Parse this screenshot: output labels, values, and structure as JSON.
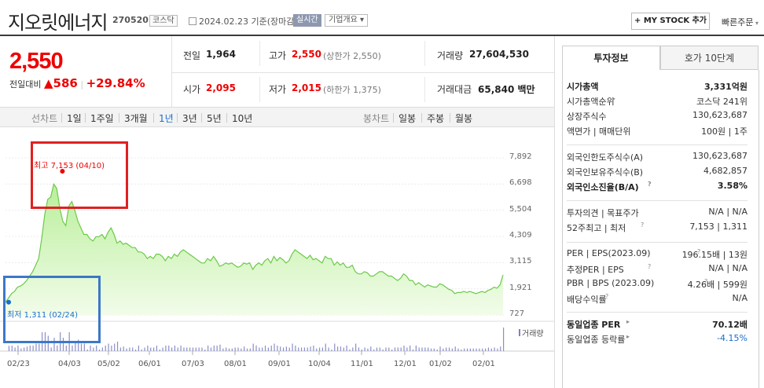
{
  "header": {
    "stock_name": "지오릿에너지",
    "stock_code": "270520",
    "market_tag": "코스닥",
    "date": "2024.02.23",
    "date_basis": "기준(장마감)",
    "live_label": "실시간",
    "overview_label": "기업개요",
    "my_stock_label": "+ MY STOCK 추가",
    "quick_order_label": "빠른주문"
  },
  "quote": {
    "price": "2,550",
    "change_label": "전일대비",
    "change_amount": "586",
    "change_percent": "+29.84%",
    "prev_close_label": "전일",
    "prev_close": "1,964",
    "high_label": "고가",
    "high": "2,550",
    "upper_limit": "(상한가 2,550)",
    "volume_label": "거래량",
    "volume": "27,604,530",
    "open_label": "시가",
    "open": "2,095",
    "low_label": "저가",
    "low": "2,015",
    "lower_limit": "(하한가 1,375)",
    "trade_value_label": "거래대금",
    "trade_value": "65,840",
    "trade_value_unit": "백만"
  },
  "period_bar": {
    "line_chart_label": "선차트",
    "periods": [
      "1일",
      "1주일",
      "3개월",
      "1년",
      "3년",
      "5년",
      "10년"
    ],
    "active_period": "1년",
    "candle_chart_label": "봉차트",
    "candle_periods": [
      "일봉",
      "주봉",
      "월봉"
    ]
  },
  "chart_data": {
    "type": "area",
    "title": "",
    "x_ticks": [
      "02/23",
      "04/03",
      "05/02",
      "06/01",
      "07/03",
      "08/01",
      "09/01",
      "10/04",
      "11/01",
      "12/01",
      "01/02",
      "02/01"
    ],
    "y_ticks": [
      7892,
      6698,
      5504,
      4309,
      3115,
      1921,
      727
    ],
    "ylim": [
      727,
      7892
    ],
    "high_annotation": "최고 7,153 (04/10)",
    "low_annotation": "최저 1,311 (02/24)",
    "volume_label": "거래량",
    "series": [
      {
        "values": [
          1311,
          1500,
          1700,
          1800,
          2000,
          2050,
          2150,
          2300,
          2500,
          2700,
          3000,
          3300,
          4200,
          5300,
          6000,
          6100,
          6700,
          6500,
          5600,
          5000,
          4800,
          5700,
          5900,
          5500,
          5000,
          4700,
          4400,
          4400,
          4200,
          4100,
          4300,
          4300,
          4400,
          4200,
          4500,
          4700,
          4400,
          4000,
          4100,
          3950,
          4000,
          3900,
          3800,
          3800,
          3600,
          3600,
          3500,
          3300,
          3400,
          3300,
          3500,
          3500,
          3400,
          3200,
          3400,
          3300,
          3500,
          3400,
          3600,
          3700,
          3600,
          3500,
          3400,
          3300,
          3200,
          3100,
          3100,
          3300,
          3200,
          3400,
          3200,
          2950,
          3000,
          3100,
          3050,
          3100,
          3000,
          2900,
          2950,
          3100,
          3050,
          3100,
          2800,
          3000,
          3100,
          3000,
          3200,
          3300,
          3100,
          3400,
          3200,
          3350,
          3250,
          3100,
          3200,
          3500,
          3700,
          3600,
          3500,
          3400,
          3300,
          3450,
          3250,
          3300,
          3200,
          3100,
          3400,
          3300,
          3300,
          3000,
          3150,
          3000,
          3100,
          2900,
          2900,
          3000,
          2700,
          2600,
          2600,
          2700,
          2650,
          2500,
          2500,
          2600,
          2700,
          2700,
          2600,
          2500,
          2500,
          2400,
          2300,
          2400,
          2600,
          2500,
          2300,
          2300,
          2100,
          2200,
          2100,
          2000,
          2100,
          2050,
          2000,
          2000,
          2150,
          2100,
          2000,
          1900,
          1850,
          1700,
          1750,
          1750,
          1800,
          1750,
          1800,
          1750,
          1700,
          1750,
          1800,
          1750,
          1850,
          1900,
          2000,
          1950,
          2100,
          2550
        ]
      }
    ]
  },
  "invest_info": {
    "tab_active": "투자정보",
    "tab_other": "호가 10단계",
    "rows1": [
      {
        "k": "시가총액",
        "v": "3,331억원",
        "bold": true
      },
      {
        "k": "시가총액순위",
        "v": "코스닥 241위"
      },
      {
        "k": "상장주식수",
        "v": "130,623,687"
      },
      {
        "k": "액면가 | 매매단위",
        "v": "100원 | 1주"
      }
    ],
    "rows2": [
      {
        "k": "외국인한도주식수(A)",
        "v": "130,623,687"
      },
      {
        "k": "외국인보유주식수(B)",
        "v": "4,682,857"
      },
      {
        "k": "외국인소진율(B/A)",
        "v": "3.58%",
        "bold": true
      }
    ],
    "rows3": [
      {
        "k": "투자의견 | 목표주가",
        "v": "N/A | N/A"
      },
      {
        "k": "52주최고 | 최저",
        "v": "7,153 | 1,311"
      }
    ],
    "rows4": [
      {
        "k": "PER | EPS(2023.09)",
        "v": "196.15배 | 13원"
      },
      {
        "k": "추정PER | EPS",
        "v": "N/A | N/A"
      },
      {
        "k": "PBR | BPS (2023.09)",
        "v": "4.26배 | 599원"
      },
      {
        "k": "배당수익률",
        "v": "N/A"
      }
    ],
    "rows5": [
      {
        "k": "동일업종 PER",
        "v": "70.12배",
        "bold": true
      },
      {
        "k": "동일업종 등락률",
        "v": "-4.15%",
        "blue": true
      }
    ]
  }
}
